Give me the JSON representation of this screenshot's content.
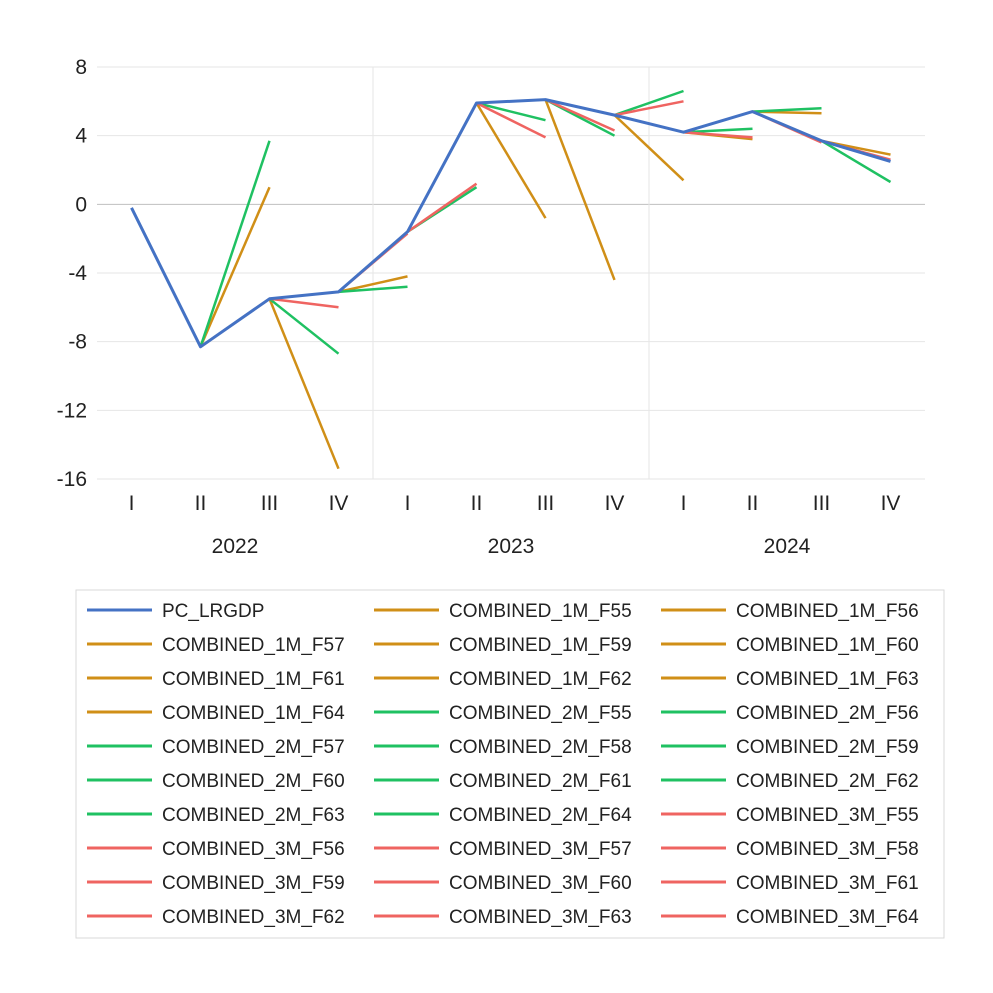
{
  "chart_data": {
    "type": "line",
    "categories": [
      "I",
      "II",
      "III",
      "IV",
      "I",
      "II",
      "III",
      "IV",
      "I",
      "II",
      "III",
      "IV"
    ],
    "years": [
      "2022",
      "2023",
      "2024"
    ],
    "ylim": [
      -16,
      8
    ],
    "yticks": [
      "8",
      "4",
      "0",
      "-4",
      "-8",
      "-12",
      "-16"
    ],
    "ytick_values": [
      8,
      4,
      0,
      -4,
      -8,
      -12,
      -16
    ],
    "grid": "horizontal",
    "legend_position": "bottom",
    "colors": {
      "actual": "#4472c4",
      "1M": "#d08f17",
      "2M": "#1fc162",
      "3M": "#ef6461"
    },
    "series": [
      {
        "name": "PC_LRGDP",
        "group": "actual",
        "values": [
          -0.2,
          -8.3,
          -5.5,
          -5.1,
          -1.6,
          5.9,
          6.1,
          5.2,
          4.2,
          5.4,
          3.7,
          2.5
        ]
      },
      {
        "name": "COMBINED_1M_F55",
        "group": "1M",
        "points": [
          [
            1,
            -8.3
          ],
          [
            2,
            1.0
          ]
        ]
      },
      {
        "name": "COMBINED_1M_F56",
        "group": "1M",
        "points": [
          [
            2,
            -5.5
          ],
          [
            3,
            -15.4
          ]
        ]
      },
      {
        "name": "COMBINED_1M_F57",
        "group": "1M",
        "points": [
          [
            3,
            -5.1
          ],
          [
            4,
            -4.2
          ]
        ]
      },
      {
        "name": "COMBINED_1M_F59",
        "group": "1M",
        "points": [
          [
            5,
            5.9
          ],
          [
            6,
            -0.8
          ]
        ]
      },
      {
        "name": "COMBINED_1M_F60",
        "group": "1M",
        "points": [
          [
            6,
            6.1
          ],
          [
            7,
            -4.4
          ]
        ]
      },
      {
        "name": "COMBINED_1M_F61",
        "group": "1M",
        "points": [
          [
            7,
            5.2
          ],
          [
            8,
            1.4
          ]
        ]
      },
      {
        "name": "COMBINED_1M_F62",
        "group": "1M",
        "points": [
          [
            8,
            4.2
          ],
          [
            9,
            3.8
          ]
        ]
      },
      {
        "name": "COMBINED_1M_F63",
        "group": "1M",
        "points": [
          [
            9,
            5.4
          ],
          [
            10,
            5.3
          ]
        ]
      },
      {
        "name": "COMBINED_1M_F64",
        "group": "1M",
        "points": [
          [
            10,
            3.7
          ],
          [
            11,
            2.9
          ]
        ]
      },
      {
        "name": "COMBINED_2M_F55",
        "group": "2M",
        "points": [
          [
            1,
            -8.3
          ],
          [
            2,
            3.7
          ]
        ]
      },
      {
        "name": "COMBINED_2M_F56",
        "group": "2M",
        "points": [
          [
            2,
            -5.5
          ],
          [
            3,
            -8.7
          ]
        ]
      },
      {
        "name": "COMBINED_2M_F57",
        "group": "2M",
        "points": [
          [
            3,
            -5.1
          ],
          [
            4,
            -4.8
          ]
        ]
      },
      {
        "name": "COMBINED_2M_F58",
        "group": "2M",
        "points": [
          [
            4,
            -1.6
          ],
          [
            5,
            1.0
          ]
        ]
      },
      {
        "name": "COMBINED_2M_F59",
        "group": "2M",
        "points": [
          [
            5,
            5.9
          ],
          [
            6,
            4.9
          ]
        ]
      },
      {
        "name": "COMBINED_2M_F60",
        "group": "2M",
        "points": [
          [
            6,
            6.1
          ],
          [
            7,
            4.0
          ]
        ]
      },
      {
        "name": "COMBINED_2M_F61",
        "group": "2M",
        "points": [
          [
            7,
            5.2
          ],
          [
            8,
            6.6
          ]
        ]
      },
      {
        "name": "COMBINED_2M_F62",
        "group": "2M",
        "points": [
          [
            8,
            4.2
          ],
          [
            9,
            4.4
          ]
        ]
      },
      {
        "name": "COMBINED_2M_F63",
        "group": "2M",
        "points": [
          [
            9,
            5.4
          ],
          [
            10,
            5.6
          ]
        ]
      },
      {
        "name": "COMBINED_2M_F64",
        "group": "2M",
        "points": [
          [
            10,
            3.7
          ],
          [
            11,
            1.3
          ]
        ]
      },
      {
        "name": "COMBINED_3M_F55",
        "group": "3M",
        "points": [
          [
            1,
            -8.3
          ],
          [
            2,
            -5.5
          ]
        ]
      },
      {
        "name": "COMBINED_3M_F56",
        "group": "3M",
        "points": [
          [
            2,
            -5.5
          ],
          [
            3,
            -6.0
          ]
        ]
      },
      {
        "name": "COMBINED_3M_F57",
        "group": "3M",
        "points": [
          [
            3,
            -5.1
          ],
          [
            4,
            -1.7
          ]
        ]
      },
      {
        "name": "COMBINED_3M_F58",
        "group": "3M",
        "points": [
          [
            4,
            -1.6
          ],
          [
            5,
            1.2
          ]
        ]
      },
      {
        "name": "COMBINED_3M_F59",
        "group": "3M",
        "points": [
          [
            5,
            5.9
          ],
          [
            6,
            3.9
          ]
        ]
      },
      {
        "name": "COMBINED_3M_F60",
        "group": "3M",
        "points": [
          [
            6,
            6.1
          ],
          [
            7,
            4.3
          ]
        ]
      },
      {
        "name": "COMBINED_3M_F61",
        "group": "3M",
        "points": [
          [
            7,
            5.2
          ],
          [
            8,
            6.0
          ]
        ]
      },
      {
        "name": "COMBINED_3M_F62",
        "group": "3M",
        "points": [
          [
            8,
            4.2
          ],
          [
            9,
            3.9
          ]
        ]
      },
      {
        "name": "COMBINED_3M_F63",
        "group": "3M",
        "points": [
          [
            9,
            5.4
          ],
          [
            10,
            3.6
          ]
        ]
      },
      {
        "name": "COMBINED_3M_F64",
        "group": "3M",
        "points": [
          [
            10,
            3.7
          ],
          [
            11,
            2.6
          ]
        ]
      }
    ]
  }
}
